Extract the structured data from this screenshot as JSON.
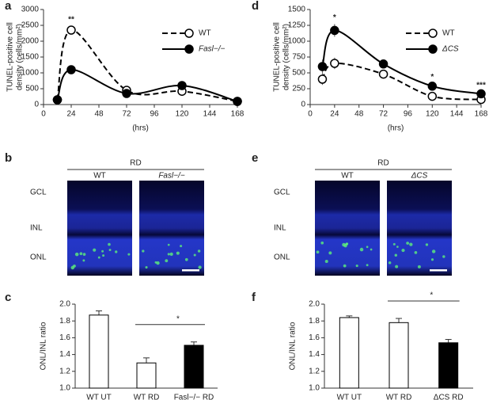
{
  "chart_data": [
    {
      "type": "line",
      "panel": "a",
      "ylabel": [
        "TUNEL-positive cell",
        "density (cells/mm²)"
      ],
      "xlabel": "(hrs)",
      "x": [
        12,
        24,
        72,
        120,
        168
      ],
      "xlim": [
        0,
        168
      ],
      "xticks": [
        0,
        24,
        48,
        72,
        96,
        120,
        144,
        168
      ],
      "ylim": [
        0,
        3000
      ],
      "yticks": [
        0,
        500,
        1000,
        1500,
        2000,
        2500,
        3000
      ],
      "legend": "upper right",
      "series": [
        {
          "name": "WT",
          "color": "#000000",
          "linestyle": "dashed",
          "marker_fill": "#ffffff",
          "values": [
            150,
            2350,
            450,
            420,
            100
          ],
          "errors": [
            30,
            130,
            60,
            60,
            20
          ]
        },
        {
          "name": "Fasl−/−",
          "color": "#000000",
          "linestyle": "solid",
          "marker_fill": "#000000",
          "values": [
            150,
            1100,
            350,
            600,
            100
          ],
          "errors": [
            30,
            100,
            40,
            110,
            20
          ]
        }
      ],
      "annotations": [
        {
          "x": 24,
          "text": "**"
        }
      ]
    },
    {
      "type": "bar",
      "panel": "c",
      "ylabel": "ONL/INL ratio",
      "categories": [
        "WT  UT",
        "WT  RD",
        "Fasl−/− RD"
      ],
      "values": [
        1.87,
        1.3,
        1.51
      ],
      "errors": [
        0.05,
        0.06,
        0.04
      ],
      "colors": [
        "#ffffff",
        "#ffffff",
        "#000000"
      ],
      "ylim": [
        1.0,
        2.0
      ],
      "yticks": [
        {
          "value": 1.0,
          "label": "1.0"
        },
        1.2,
        1.4,
        1.6,
        1.8,
        {
          "value": 2.0,
          "label": "2.0"
        }
      ],
      "significance": "*"
    },
    {
      "type": "line",
      "panel": "d",
      "ylabel": [
        "TUNEL-positive cell",
        "density (cells/mm²)"
      ],
      "xlabel": "(hrs)",
      "x": [
        12,
        24,
        72,
        120,
        168
      ],
      "xlim": [
        0,
        168
      ],
      "xticks": [
        0,
        24,
        48,
        72,
        96,
        120,
        144,
        168
      ],
      "ylim": [
        0,
        1500
      ],
      "yticks": [
        0,
        250,
        500,
        750,
        1000,
        1250,
        1500
      ],
      "legend": "upper right",
      "series": [
        {
          "name": "WT",
          "color": "#000000",
          "linestyle": "dashed",
          "marker_fill": "#ffffff",
          "values": [
            400,
            650,
            480,
            130,
            80
          ],
          "errors": [
            90,
            90,
            60,
            30,
            20
          ]
        },
        {
          "name": "ΔCS",
          "color": "#000000",
          "linestyle": "solid",
          "marker_fill": "#000000",
          "values": [
            600,
            1170,
            640,
            290,
            170
          ],
          "errors": [
            110,
            100,
            70,
            40,
            30
          ]
        }
      ],
      "annotations": [
        {
          "x": 24,
          "text": "*"
        },
        {
          "x": 120,
          "text": "*"
        },
        {
          "x": 168,
          "text": "***"
        }
      ]
    },
    {
      "type": "bar",
      "panel": "f",
      "ylabel": "ONL/INL ratio",
      "categories": [
        "WT  UT",
        "WT  RD",
        "ΔCS  RD"
      ],
      "values": [
        1.84,
        1.78,
        1.54
      ],
      "errors": [
        0.02,
        0.05,
        0.04
      ],
      "colors": [
        "#ffffff",
        "#ffffff",
        "#000000"
      ],
      "ylim": [
        1.0,
        2.0
      ],
      "yticks": [
        {
          "value": 1.0,
          "label": "1.0"
        },
        1.2,
        1.4,
        1.6,
        1.8,
        {
          "value": 2.0,
          "label": "2.0"
        }
      ],
      "significance": "*"
    }
  ],
  "images": [
    {
      "panel": "b",
      "header": "RD",
      "columns": [
        "WT",
        "Fasl−/−"
      ],
      "rows": [
        "GCL",
        "INL",
        "ONL"
      ]
    },
    {
      "panel": "e",
      "header": "RD",
      "columns": [
        "WT",
        "ΔCS"
      ],
      "rows": [
        "GCL",
        "INL",
        "ONL"
      ]
    }
  ]
}
